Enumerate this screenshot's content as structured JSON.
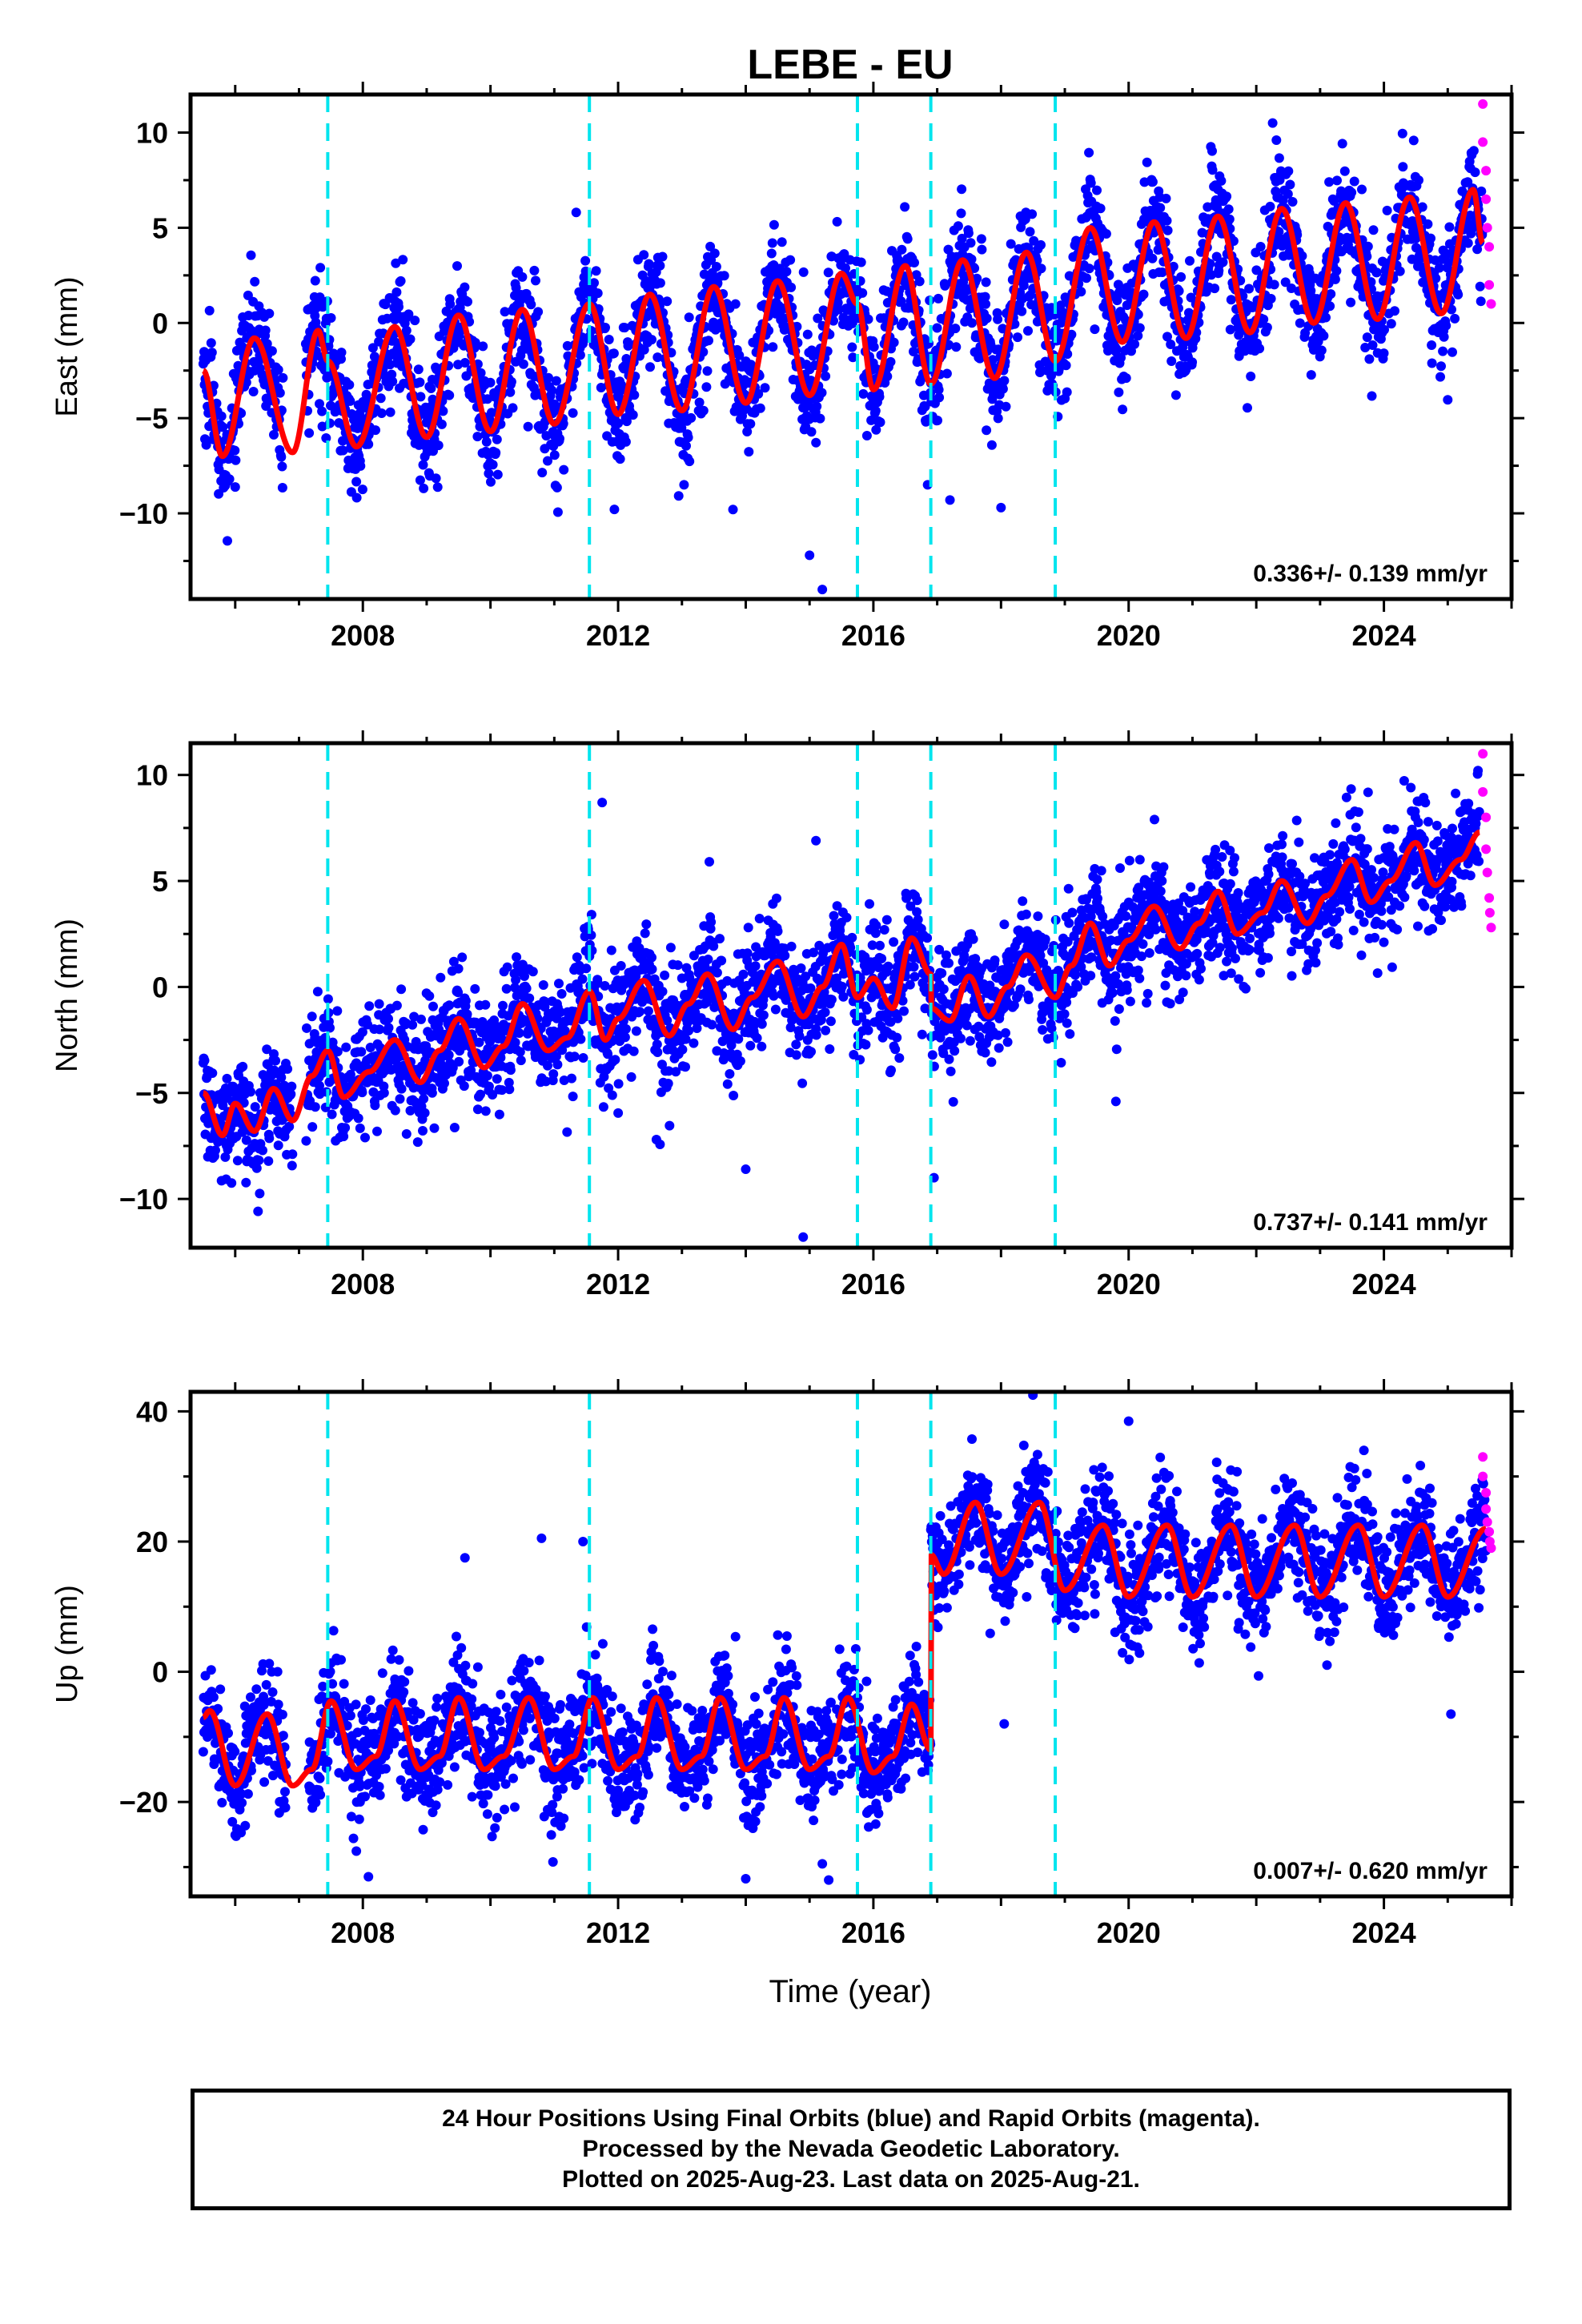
{
  "chart_data": [
    {
      "type": "scatter",
      "title": "LEBE - EU",
      "ylabel": "East (mm)",
      "xlabel": "",
      "xlim": [
        2005.3,
        2026.0
      ],
      "ylim": [
        -14.5,
        12.0
      ],
      "yticks": [
        10,
        5,
        0,
        -5,
        -10
      ],
      "xticks": [
        2008,
        2012,
        2016,
        2020,
        2024
      ],
      "rate_label": "0.336+/- 0.139 mm/yr",
      "breaks": [
        2007.45,
        2011.55,
        2015.75,
        2016.9,
        2018.85
      ],
      "series": [
        {
          "role": "final_orbits",
          "color": "#0000ff"
        },
        {
          "role": "rapid_orbits",
          "color": "#ff00ff"
        },
        {
          "role": "model",
          "color": "#ff0000"
        }
      ],
      "model_knots": {
        "x": [
          2005.5,
          2005.8,
          2006.3,
          2006.9,
          2007.3,
          2007.45,
          2007.9,
          2008.5,
          2009.0,
          2009.5,
          2010.0,
          2010.5,
          2011.0,
          2011.55,
          2012.0,
          2012.5,
          2013.0,
          2013.5,
          2014.0,
          2014.5,
          2015.0,
          2015.5,
          2015.75,
          2016.0,
          2016.5,
          2016.9,
          2017.4,
          2017.9,
          2018.4,
          2018.85,
          2019.4,
          2019.9,
          2020.4,
          2020.9,
          2021.4,
          2021.9,
          2022.4,
          2022.9,
          2023.4,
          2023.9,
          2024.4,
          2024.9,
          2025.4,
          2025.55
        ],
        "y": [
          -2.5,
          -7.0,
          -0.8,
          -6.8,
          -0.4,
          -2.0,
          -6.5,
          -0.2,
          -6.0,
          0.4,
          -5.7,
          0.7,
          -5.3,
          1.0,
          -4.8,
          1.5,
          -4.6,
          1.9,
          -4.2,
          2.2,
          -3.8,
          2.6,
          1.0,
          -3.5,
          3.0,
          -3.2,
          3.3,
          -2.9,
          3.7,
          -2.0,
          5.0,
          -1.0,
          5.3,
          -0.8,
          5.6,
          -0.5,
          6.0,
          0.0,
          6.3,
          0.2,
          6.6,
          0.5,
          7.0,
          4.2
        ]
      },
      "rapid_orbits": {
        "x": [
          2025.55,
          2025.55,
          2025.6,
          2025.6,
          2025.62,
          2025.65,
          2025.65,
          2025.68
        ],
        "y": [
          11.5,
          9.5,
          8.0,
          6.5,
          5.0,
          4.0,
          2.0,
          1.0
        ]
      },
      "outliers": {
        "x": [
          2015.0,
          2015.2,
          2016.85,
          2017.2,
          2018.0,
          2013.8
        ],
        "y": [
          -12.2,
          -14.0,
          -8.5,
          -9.3,
          -9.7,
          -9.8
        ]
      }
    },
    {
      "type": "scatter",
      "title": "",
      "ylabel": "North (mm)",
      "xlabel": "",
      "xlim": [
        2005.3,
        2026.0
      ],
      "ylim": [
        -12.3,
        11.5
      ],
      "yticks": [
        10,
        5,
        0,
        -5,
        -10
      ],
      "xticks": [
        2008,
        2012,
        2016,
        2020,
        2024
      ],
      "rate_label": "0.737+/- 0.141 mm/yr",
      "breaks": [
        2007.45,
        2011.55,
        2015.75,
        2016.9,
        2018.85
      ],
      "series": [
        {
          "role": "final_orbits",
          "color": "#0000ff"
        },
        {
          "role": "rapid_orbits",
          "color": "#ff00ff"
        },
        {
          "role": "model",
          "color": "#ff0000"
        }
      ],
      "model_knots": {
        "x": [
          2005.5,
          2005.8,
          2006.0,
          2006.3,
          2006.6,
          2006.9,
          2007.2,
          2007.45,
          2007.7,
          2008.1,
          2008.5,
          2008.9,
          2009.2,
          2009.5,
          2009.9,
          2010.2,
          2010.5,
          2010.9,
          2011.2,
          2011.55,
          2011.8,
          2012.0,
          2012.4,
          2012.8,
          2013.1,
          2013.4,
          2013.8,
          2014.1,
          2014.5,
          2014.9,
          2015.2,
          2015.5,
          2015.75,
          2016.0,
          2016.3,
          2016.6,
          2016.9,
          2016.9,
          2017.2,
          2017.5,
          2017.8,
          2018.1,
          2018.4,
          2018.85,
          2019.1,
          2019.4,
          2019.7,
          2020.0,
          2020.4,
          2020.8,
          2021.1,
          2021.4,
          2021.7,
          2022.1,
          2022.4,
          2022.8,
          2023.1,
          2023.5,
          2023.8,
          2024.1,
          2024.5,
          2024.8,
          2025.2,
          2025.5
        ],
        "y": [
          -5.0,
          -7.0,
          -5.5,
          -6.8,
          -4.8,
          -6.3,
          -4.2,
          -3.0,
          -5.2,
          -4.0,
          -2.5,
          -4.5,
          -3.0,
          -1.5,
          -3.8,
          -2.8,
          -0.8,
          -3.0,
          -2.4,
          -0.2,
          -2.5,
          -1.5,
          0.3,
          -2.3,
          -0.8,
          0.6,
          -2.0,
          -0.5,
          1.2,
          -1.4,
          0.0,
          2.0,
          -0.5,
          0.4,
          -1.0,
          2.3,
          0.6,
          -1.0,
          -1.6,
          0.5,
          -1.4,
          0.0,
          1.5,
          -0.5,
          1.0,
          3.0,
          1.0,
          2.2,
          3.8,
          1.8,
          3.0,
          4.5,
          2.5,
          3.5,
          5.0,
          3.0,
          4.3,
          6.0,
          4.0,
          5.0,
          6.8,
          4.8,
          6.0,
          7.3
        ]
      },
      "rapid_orbits": {
        "x": [
          2025.55,
          2025.55,
          2025.6,
          2025.6,
          2025.62,
          2025.65,
          2025.66,
          2025.68
        ],
        "y": [
          11.0,
          9.2,
          8.0,
          6.5,
          5.4,
          4.2,
          3.5,
          2.8
        ]
      },
      "outliers": {
        "x": [
          2011.75,
          2015.1,
          2014.9,
          2016.95,
          2019.8,
          2014.0,
          2012.6
        ],
        "y": [
          8.7,
          6.9,
          -11.8,
          -9.0,
          -5.4,
          -8.6,
          -7.2
        ]
      }
    },
    {
      "type": "scatter",
      "title": "",
      "ylabel": "Up (mm)",
      "xlabel": "Time (year)",
      "xlim": [
        2005.3,
        2026.0
      ],
      "ylim": [
        -34.5,
        43.0
      ],
      "yticks": [
        40,
        20,
        0,
        -20
      ],
      "xticks": [
        2008,
        2012,
        2016,
        2020,
        2024
      ],
      "rate_label": "0.007+/- 0.620 mm/yr",
      "breaks": [
        2007.45,
        2011.55,
        2015.75,
        2016.9,
        2018.85
      ],
      "series": [
        {
          "role": "final_orbits",
          "color": "#0000ff"
        },
        {
          "role": "rapid_orbits",
          "color": "#ff00ff"
        },
        {
          "role": "model",
          "color": "#ff0000"
        }
      ],
      "model_knots": {
        "x": [
          2005.5,
          2005.6,
          2006.0,
          2006.5,
          2006.9,
          2007.2,
          2007.5,
          2007.9,
          2008.2,
          2008.5,
          2008.9,
          2009.2,
          2009.5,
          2009.9,
          2010.2,
          2010.6,
          2011.0,
          2011.3,
          2011.6,
          2012.0,
          2012.3,
          2012.6,
          2013.0,
          2013.3,
          2013.6,
          2014.0,
          2014.3,
          2014.6,
          2015.0,
          2015.3,
          2015.6,
          2016.0,
          2016.3,
          2016.6,
          2016.9,
          2016.9,
          2017.1,
          2017.6,
          2018.0,
          2018.6,
          2019.0,
          2019.6,
          2020.0,
          2020.6,
          2021.0,
          2021.6,
          2022.0,
          2022.6,
          2023.0,
          2023.6,
          2024.0,
          2024.6,
          2025.0,
          2025.6
        ],
        "y": [
          -7.0,
          -6.0,
          -17.5,
          -6.5,
          -17.5,
          -15.0,
          -4.5,
          -15.0,
          -13.0,
          -4.5,
          -15.0,
          -13.0,
          -4.0,
          -15.0,
          -13.0,
          -4.0,
          -15.0,
          -13.0,
          -4.0,
          -15.0,
          -13.0,
          -4.0,
          -15.0,
          -13.0,
          -4.0,
          -15.0,
          -13.0,
          -4.0,
          -15.0,
          -13.0,
          -4.0,
          -15.5,
          -13.0,
          -5.0,
          -12.0,
          18.0,
          15.0,
          26.0,
          15.0,
          26.0,
          12.5,
          22.5,
          11.5,
          22.5,
          11.5,
          22.5,
          11.5,
          22.5,
          11.5,
          22.5,
          11.5,
          22.5,
          11.5,
          22.0
        ]
      },
      "rapid_orbits": {
        "x": [
          2025.55,
          2025.55,
          2025.6,
          2025.6,
          2025.62,
          2025.65,
          2025.66,
          2025.68
        ],
        "y": [
          33.0,
          30.0,
          27.5,
          25.0,
          23.0,
          21.5,
          20.0,
          19.0
        ]
      },
      "outliers": {
        "x": [
          2009.6,
          2010.8,
          2011.45,
          2014.0,
          2015.3,
          2015.2,
          2018.5,
          2018.05,
          2020.0,
          2025.05
        ],
        "y": [
          17.5,
          20.5,
          20.0,
          -31.8,
          -32.0,
          -29.5,
          42.5,
          -8.0,
          38.5,
          -6.5
        ]
      }
    }
  ],
  "footer": {
    "line1": "24 Hour Positions Using Final Orbits (blue) and Rapid Orbits (magenta).",
    "line2": "Processed by the Nevada Geodetic Laboratory.",
    "line3": "Plotted on 2025-Aug-23. Last data on 2025-Aug-21."
  }
}
